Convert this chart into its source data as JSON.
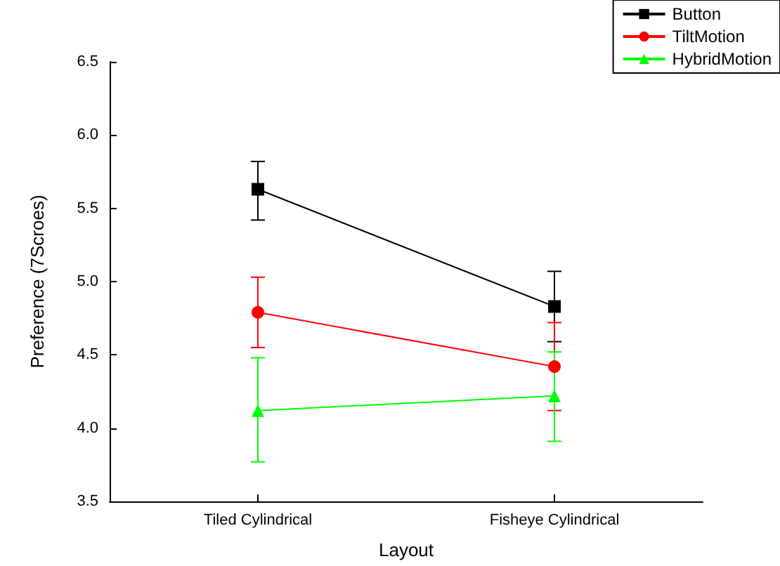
{
  "chart_data": {
    "type": "line",
    "xlabel": "Layout",
    "ylabel": "Preference (7Scroes)",
    "categories": [
      "Tiled Cylindrical",
      "Fisheye Cylindrical"
    ],
    "series": [
      {
        "name": "Button",
        "color": "#000000",
        "marker": "square",
        "values": [
          5.63,
          4.83
        ],
        "errors": [
          [
            5.82,
            5.42
          ],
          [
            5.07,
            4.59
          ]
        ]
      },
      {
        "name": "TiltMotion",
        "color": "#ff0000",
        "marker": "circle",
        "values": [
          4.79,
          4.42
        ],
        "errors": [
          [
            5.03,
            4.55
          ],
          [
            4.72,
            4.12
          ]
        ]
      },
      {
        "name": "HybridMotion",
        "color": "#00ff00",
        "marker": "triangle",
        "values": [
          4.12,
          4.22
        ],
        "errors": [
          [
            4.48,
            3.77
          ],
          [
            4.52,
            3.91
          ]
        ]
      }
    ],
    "ylim": [
      3.5,
      6.5
    ],
    "yticks": [
      {
        "value": 3.5,
        "label": "3.5"
      },
      {
        "value": 4,
        "label": "4.0"
      },
      {
        "value": 4.5,
        "label": "4.5"
      },
      {
        "value": 5,
        "label": "5.0"
      },
      {
        "value": 5.5,
        "label": "5.5"
      },
      {
        "value": 6,
        "label": "6.0"
      },
      {
        "value": 6.5,
        "label": "6.5"
      }
    ],
    "grid": false,
    "legend": "top right"
  }
}
